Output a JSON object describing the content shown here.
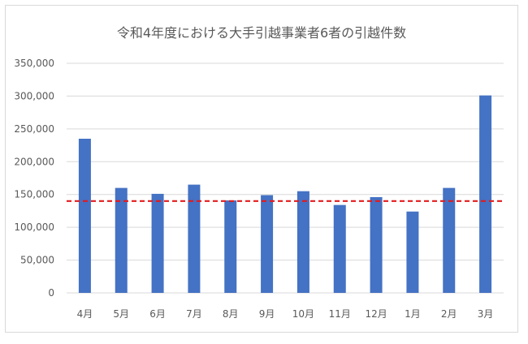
{
  "chart_data": {
    "type": "bar",
    "title": "令和4年度における大手引越事業者6者の引越件数",
    "xlabel": "",
    "ylabel": "",
    "categories": [
      "4月",
      "5月",
      "6月",
      "7月",
      "8月",
      "9月",
      "10月",
      "11月",
      "12月",
      "1月",
      "2月",
      "3月"
    ],
    "values": [
      235000,
      160000,
      151000,
      165000,
      141000,
      149000,
      155000,
      134000,
      146000,
      124000,
      160000,
      301000
    ],
    "ylim": [
      0,
      350000
    ],
    "yticks": [
      0,
      50000,
      100000,
      150000,
      200000,
      250000,
      300000,
      350000
    ],
    "ytick_labels": [
      "0",
      "50,000",
      "100,000",
      "150,000",
      "200,000",
      "250,000",
      "300,000",
      "350,000"
    ],
    "reference_line": 140000,
    "bar_color": "#4472c4",
    "reference_line_color": "#e31a1c",
    "gridline_color": "#d9d9d9",
    "grid": true,
    "legend": "none"
  }
}
